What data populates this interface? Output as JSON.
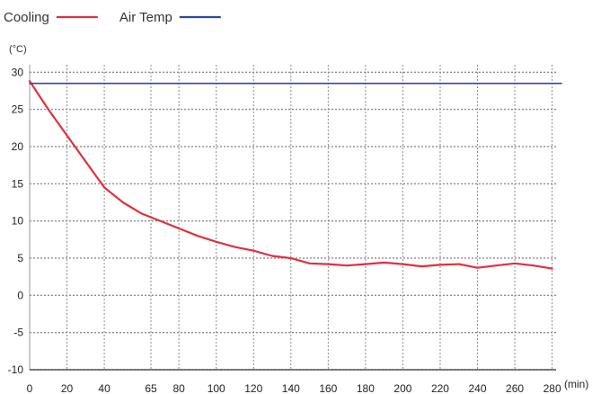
{
  "chart_data": {
    "type": "line",
    "xlabel": "",
    "ylabel": "",
    "x_unit": "(min)",
    "y_unit": "(°C)",
    "x_ticks": [
      0,
      20,
      40,
      65,
      80,
      100,
      120,
      140,
      160,
      180,
      200,
      220,
      240,
      260,
      280
    ],
    "y_ticks": [
      30,
      25,
      20,
      15,
      10,
      5,
      0,
      -5,
      -10
    ],
    "xlim": [
      0,
      285
    ],
    "ylim": [
      -10,
      31
    ],
    "grid": true,
    "legend_position": "top-left",
    "series": [
      {
        "name": "Cooling",
        "color": "#e0303c",
        "points": [
          [
            0,
            28.8
          ],
          [
            10,
            25
          ],
          [
            20,
            21.5
          ],
          [
            30,
            18
          ],
          [
            40,
            14.5
          ],
          [
            50,
            12.5
          ],
          [
            60,
            11
          ],
          [
            70,
            10
          ],
          [
            80,
            9
          ],
          [
            90,
            8
          ],
          [
            100,
            7.2
          ],
          [
            110,
            6.5
          ],
          [
            120,
            6
          ],
          [
            130,
            5.3
          ],
          [
            140,
            5
          ],
          [
            150,
            4.3
          ],
          [
            160,
            4.2
          ],
          [
            170,
            4
          ],
          [
            180,
            4.2
          ],
          [
            190,
            4.4
          ],
          [
            200,
            4.2
          ],
          [
            210,
            3.9
          ],
          [
            220,
            4.1
          ],
          [
            230,
            4.2
          ],
          [
            240,
            3.7
          ],
          [
            250,
            4
          ],
          [
            260,
            4.3
          ],
          [
            270,
            4
          ],
          [
            280,
            3.6
          ]
        ]
      },
      {
        "name": "Air Temp",
        "color": "#2b4aa8",
        "points": [
          [
            0,
            28.5
          ],
          [
            285,
            28.5
          ]
        ]
      }
    ]
  }
}
